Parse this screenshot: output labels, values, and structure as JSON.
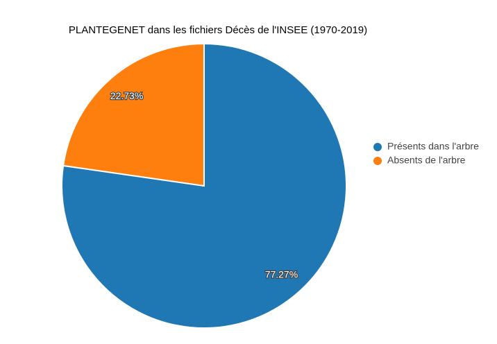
{
  "chart_data": {
    "type": "pie",
    "title": "PLANTEGENET dans les fichiers Décès de l'INSEE (1970-2019)",
    "categories": [
      "Présents dans l'arbre",
      "Absents de l'arbre"
    ],
    "values": [
      77.27,
      22.73
    ],
    "value_labels": [
      "77.27%",
      "22.73%"
    ],
    "colors": [
      "#1f77b4",
      "#ff7f0e"
    ],
    "legend": "right"
  }
}
